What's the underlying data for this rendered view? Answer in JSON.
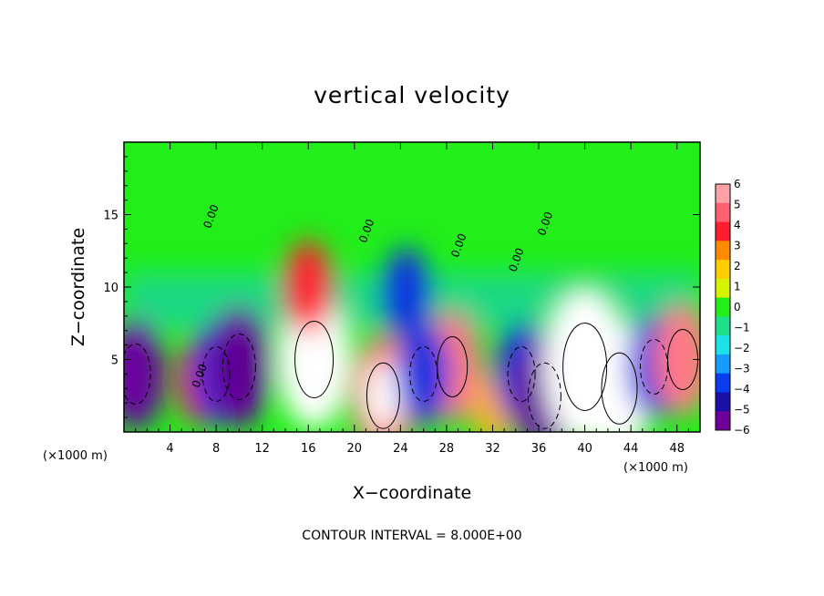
{
  "chart_data": {
    "type": "heatmap",
    "title": "vertical velocity",
    "xlabel": "X−coordinate",
    "ylabel": "Z−coordinate",
    "x_unit_left": "(×1000 m)",
    "x_unit_right": "(×1000 m)",
    "xlim": [
      0,
      50
    ],
    "ylim": [
      0,
      20
    ],
    "x_ticks": [
      4,
      8,
      12,
      16,
      20,
      24,
      28,
      32,
      36,
      40,
      44,
      48
    ],
    "y_ticks": [
      5,
      10,
      15
    ],
    "colorbar": {
      "min": -6,
      "max": 6,
      "ticks": [
        6,
        5,
        4,
        3,
        2,
        1,
        0,
        -1,
        -2,
        -3,
        -4,
        -5,
        -6
      ],
      "tick_labels": [
        "6",
        "5",
        "4",
        "3",
        "2",
        "1",
        "0",
        "−1",
        "−2",
        "−3",
        "−4",
        "−5",
        "−6"
      ],
      "colors": [
        "#ff9fa6",
        "#ff6070",
        "#ff1e2d",
        "#ff8a00",
        "#ffcc00",
        "#d6f200",
        "#22ee1a",
        "#1fe08a",
        "#1ae2e8",
        "#149cff",
        "#0a3cf0",
        "#1a10a8",
        "#70009a"
      ],
      "positions": "right"
    },
    "contour_labels": [
      "0.00",
      "0.00",
      "0.00",
      "0.00",
      "0.00",
      "0.00"
    ],
    "field_features": [
      {
        "x": 1,
        "z": 4,
        "w": -7
      },
      {
        "x": 6.5,
        "z": 3.5,
        "w": 4
      },
      {
        "x": 8,
        "z": 4,
        "w": -6
      },
      {
        "x": 10,
        "z": 4.5,
        "w": -8
      },
      {
        "x": 16.5,
        "z": 5,
        "w": 10
      },
      {
        "x": 16,
        "z": 10,
        "w": 5
      },
      {
        "x": 22.5,
        "z": 2.5,
        "w": 8
      },
      {
        "x": 24.5,
        "z": 9.5,
        "w": -5
      },
      {
        "x": 28.5,
        "z": 4.5,
        "w": 7
      },
      {
        "x": 26,
        "z": 4,
        "w": -6
      },
      {
        "x": 32,
        "z": 1.5,
        "w": 3
      },
      {
        "x": 34.5,
        "z": 4,
        "w": -6
      },
      {
        "x": 36.5,
        "z": 2.5,
        "w": -8
      },
      {
        "x": 40,
        "z": 4.5,
        "w": 12
      },
      {
        "x": 43,
        "z": 3,
        "w": 9
      },
      {
        "x": 46,
        "z": 4.5,
        "w": -6
      },
      {
        "x": 48.5,
        "z": 5,
        "w": 7
      }
    ]
  },
  "footer": {
    "contour_interval": "CONTOUR INTERVAL =  8.000E+00"
  }
}
